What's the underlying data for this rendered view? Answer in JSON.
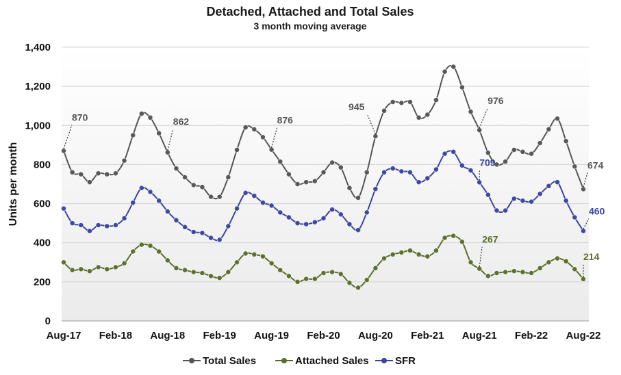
{
  "chart_data": {
    "type": "line",
    "title": "Detached, Attached and Total Sales",
    "subtitle": "3 month moving average",
    "ylabel": "Units per month",
    "xlabel": "",
    "ylim": [
      0,
      1400
    ],
    "yticks": [
      0,
      200,
      400,
      600,
      800,
      1000,
      1200,
      1400
    ],
    "ytick_labels": [
      "0",
      "200",
      "400",
      "600",
      "800",
      "1,000",
      "1,200",
      "1,400"
    ],
    "xtick_labels": [
      "Aug-17",
      "Feb-18",
      "Aug-18",
      "Feb-19",
      "Aug-19",
      "Feb-20",
      "Aug-20",
      "Feb-21",
      "Aug-21",
      "Feb-22",
      "Aug-22"
    ],
    "xtick_index": [
      0,
      6,
      12,
      18,
      24,
      30,
      36,
      42,
      48,
      54,
      60
    ],
    "grid": true,
    "legend": "bottom",
    "series": [
      {
        "name": "Total Sales",
        "color": "#555555",
        "values": [
          870,
          760,
          750,
          710,
          755,
          750,
          755,
          820,
          950,
          1060,
          1040,
          960,
          862,
          780,
          735,
          695,
          685,
          635,
          635,
          735,
          875,
          990,
          980,
          940,
          876,
          815,
          750,
          700,
          710,
          715,
          760,
          810,
          785,
          680,
          630,
          760,
          945,
          1075,
          1120,
          1115,
          1120,
          1040,
          1055,
          1130,
          1275,
          1300,
          1195,
          1070,
          976,
          860,
          800,
          815,
          875,
          865,
          855,
          910,
          980,
          1035,
          920,
          790,
          674
        ]
      },
      {
        "name": "Attached Sales",
        "color": "#5a6e2b",
        "values": [
          300,
          260,
          265,
          255,
          275,
          265,
          275,
          295,
          355,
          390,
          385,
          355,
          310,
          270,
          260,
          250,
          245,
          230,
          220,
          250,
          300,
          345,
          340,
          330,
          295,
          260,
          230,
          200,
          215,
          215,
          245,
          250,
          240,
          195,
          170,
          210,
          270,
          320,
          340,
          350,
          360,
          340,
          330,
          360,
          425,
          435,
          405,
          300,
          267,
          230,
          245,
          250,
          255,
          250,
          245,
          270,
          300,
          320,
          305,
          265,
          214
        ]
      },
      {
        "name": "SFR",
        "color": "#3a45a0",
        "values": [
          575,
          500,
          490,
          460,
          490,
          485,
          490,
          525,
          605,
          680,
          660,
          615,
          560,
          515,
          480,
          455,
          450,
          425,
          415,
          485,
          575,
          655,
          640,
          605,
          590,
          555,
          530,
          500,
          495,
          505,
          525,
          570,
          545,
          495,
          465,
          555,
          675,
          760,
          780,
          765,
          760,
          710,
          730,
          775,
          855,
          865,
          795,
          770,
          709,
          645,
          565,
          565,
          625,
          615,
          610,
          650,
          690,
          710,
          615,
          530,
          460
        ]
      }
    ],
    "annotations": [
      {
        "series": "Total Sales",
        "index": 0,
        "text": "870"
      },
      {
        "series": "Total Sales",
        "index": 12,
        "text": "862"
      },
      {
        "series": "Total Sales",
        "index": 24,
        "text": "876"
      },
      {
        "series": "Total Sales",
        "index": 36,
        "text": "945"
      },
      {
        "series": "Total Sales",
        "index": 48,
        "text": "976"
      },
      {
        "series": "Total Sales",
        "index": 60,
        "text": "674"
      },
      {
        "series": "SFR",
        "index": 48,
        "text": "709"
      },
      {
        "series": "SFR",
        "index": 60,
        "text": "460"
      },
      {
        "series": "Attached Sales",
        "index": 48,
        "text": "267"
      },
      {
        "series": "Attached Sales",
        "index": 60,
        "text": "214"
      }
    ]
  }
}
